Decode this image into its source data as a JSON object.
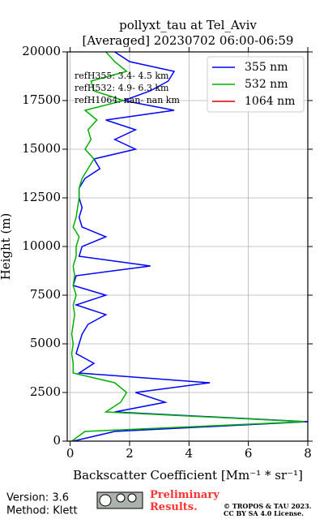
{
  "chart_data": {
    "type": "line",
    "title": "pollyxt_tau at Tel_Aviv",
    "subtitle": "[Averaged] 20230702 06:00-06:59",
    "x_label": "Backscatter Coefficient [Mm⁻¹ * sr⁻¹]",
    "y_label": "Height (m)",
    "y": [
      0,
      500,
      1000,
      1500,
      2000,
      2500,
      3000,
      3500,
      4000,
      4500,
      5000,
      5500,
      6000,
      6500,
      7000,
      7500,
      8000,
      8500,
      9000,
      9500,
      10000,
      10500,
      11000,
      11500,
      12000,
      12500,
      13000,
      13500,
      14000,
      14500,
      15000,
      15500,
      16000,
      16500,
      17000,
      17500,
      18000,
      18500,
      19000,
      19500,
      20000
    ],
    "series": [
      {
        "name": "355 nm",
        "color": "#0000ff",
        "values": [
          0.1,
          1.5,
          8,
          1.5,
          3.2,
          2.2,
          4.7,
          0.3,
          0.8,
          0.2,
          0.3,
          0.4,
          0.6,
          1.2,
          0.2,
          1.2,
          0.1,
          0.2,
          2.7,
          0.3,
          0.4,
          1.2,
          0.4,
          0.3,
          0.4,
          0.3,
          0.3,
          0.5,
          1,
          0.8,
          2.2,
          1.5,
          2.2,
          1.2,
          3.5,
          1.8,
          2.7,
          3.3,
          3.5,
          2,
          1.5
        ]
      },
      {
        "name": "532 nm",
        "color": "#00b000",
        "values": [
          0.05,
          0.5,
          7.9,
          1.2,
          1.7,
          1.9,
          1.5,
          0.1,
          0.1,
          0.05,
          0.1,
          0.05,
          0.1,
          0.15,
          0.1,
          0.2,
          0.1,
          0.15,
          0.1,
          0.2,
          0.2,
          0.3,
          0.1,
          0.2,
          0.25,
          0.3,
          0.3,
          0.4,
          0.6,
          0.8,
          0.5,
          0.7,
          0.6,
          0.9,
          0.5,
          1.8,
          0.8,
          0.7,
          1.9,
          1.5,
          1.2
        ]
      },
      {
        "name": "1064 nm",
        "color": "#e00000"
      }
    ],
    "xlim": [
      -0.1,
      8
    ],
    "xticks": [
      0,
      2,
      4,
      6,
      8
    ],
    "ylim": [
      0,
      20000
    ],
    "yticks": [
      0,
      2500,
      5000,
      7500,
      10000,
      12500,
      15000,
      17500,
      20000
    ],
    "grid": true,
    "legend": "upper right",
    "annotations": [
      "refH355:  3.4- 4.5 km",
      "refH532:  4.9- 6.3 km",
      "refH1064:  nan- nan km"
    ],
    "version": "Version: 3.6",
    "method": "Method: Klett",
    "watermark": "Preliminary\nResults.",
    "copyright": [
      "© TROPOS & TAU 2023.",
      "CC BY SA 4.0 License."
    ]
  }
}
